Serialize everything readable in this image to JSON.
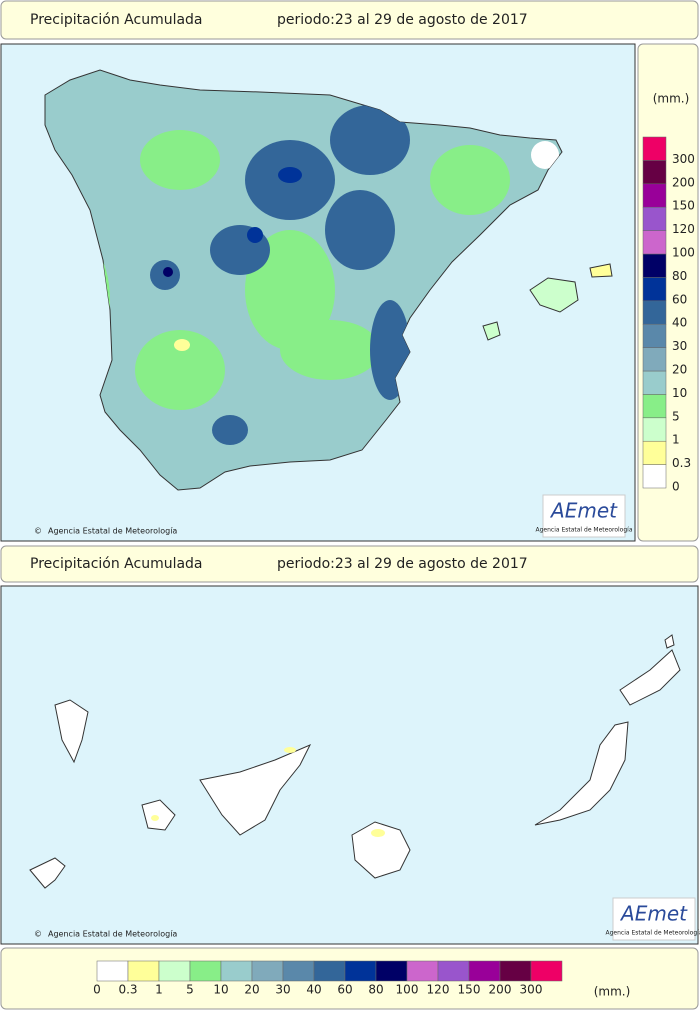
{
  "header": {
    "title": "Precipitación Acumulada",
    "period": "periodo:23 al 29 de agosto de 2017"
  },
  "credit": "Agencia Estatal de Meteorología",
  "logo": {
    "name": "AEmet",
    "subtitle": "Agencia Estatal de Meteorología"
  },
  "legend": {
    "units": "(mm.)",
    "items": [
      {
        "label": "0",
        "color": "#ffffff"
      },
      {
        "label": "0.3",
        "color": "#ffff99"
      },
      {
        "label": "1",
        "color": "#ccffcc"
      },
      {
        "label": "5",
        "color": "#88ee88"
      },
      {
        "label": "10",
        "color": "#99cccc"
      },
      {
        "label": "20",
        "color": "#80aabb"
      },
      {
        "label": "30",
        "color": "#5a88aa"
      },
      {
        "label": "40",
        "color": "#336699"
      },
      {
        "label": "60",
        "color": "#003399"
      },
      {
        "label": "80",
        "color": "#000066"
      },
      {
        "label": "100",
        "color": "#cc66cc"
      },
      {
        "label": "120",
        "color": "#9955cc"
      },
      {
        "label": "150",
        "color": "#990099"
      },
      {
        "label": "200",
        "color": "#660044"
      },
      {
        "label": "300",
        "color": "#ee0066"
      }
    ]
  }
}
